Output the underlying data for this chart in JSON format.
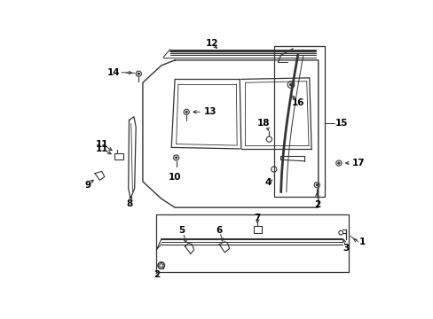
{
  "bg": "#ffffff",
  "lc": "#333333",
  "tc": "#000000",
  "fig_w": 4.89,
  "fig_h": 3.6,
  "dpi": 100,
  "parts": {
    "label_fs": 7.5
  }
}
